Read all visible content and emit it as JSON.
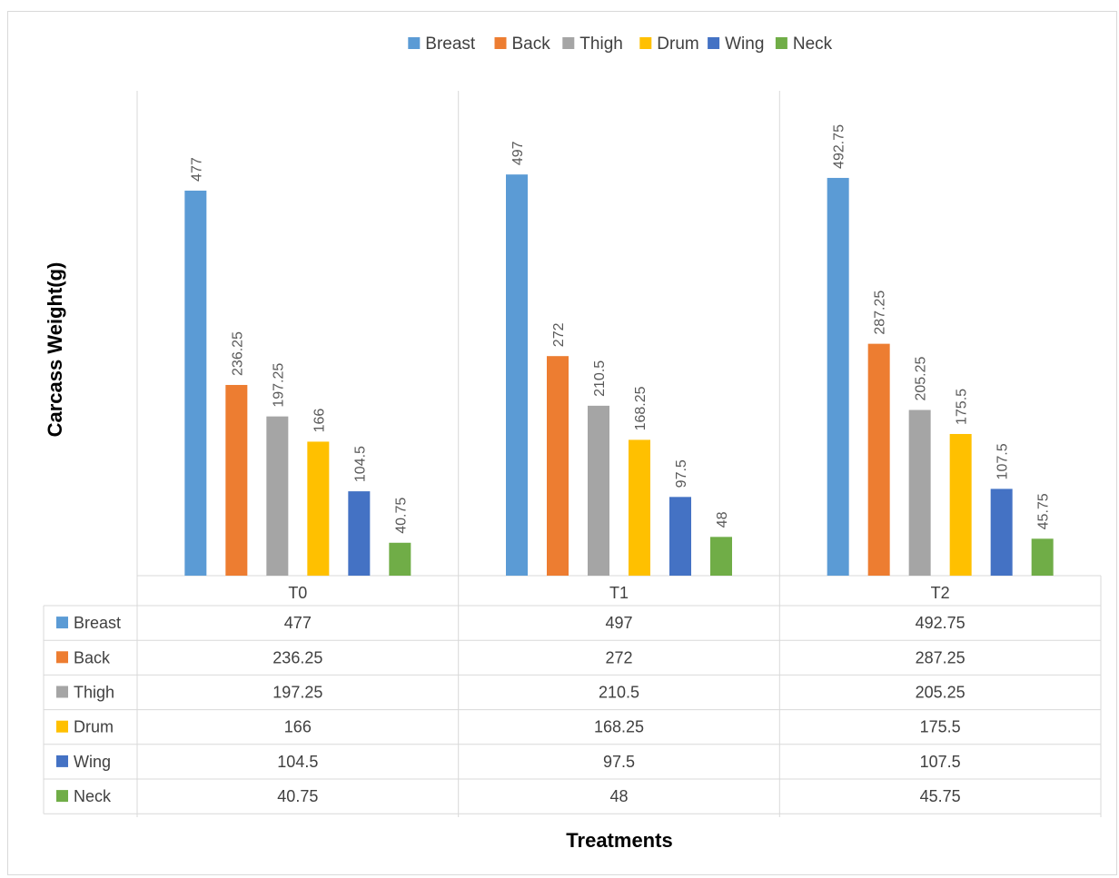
{
  "chart_data": {
    "type": "bar",
    "title": "",
    "xlabel": "Treatments",
    "ylabel": "Carcass Weight(g)",
    "ylim": [
      0,
      520
    ],
    "grid": false,
    "legend_position": "top",
    "categories": [
      "T0",
      "T1",
      "T2"
    ],
    "series": [
      {
        "name": "Breast",
        "color": "#5b9bd5",
        "values": [
          477,
          497,
          492.75
        ]
      },
      {
        "name": "Back",
        "color": "#ed7d31",
        "values": [
          236.25,
          272,
          287.25
        ]
      },
      {
        "name": "Thigh",
        "color": "#a5a5a5",
        "values": [
          197.25,
          210.5,
          205.25
        ]
      },
      {
        "name": "Drum",
        "color": "#ffc000",
        "values": [
          166,
          168.25,
          175.5
        ]
      },
      {
        "name": "Wing",
        "color": "#4472c4",
        "values": [
          104.5,
          97.5,
          107.5
        ]
      },
      {
        "name": "Neck",
        "color": "#70ad47",
        "values": [
          40.75,
          48,
          45.75
        ]
      }
    ],
    "data_table": true
  }
}
